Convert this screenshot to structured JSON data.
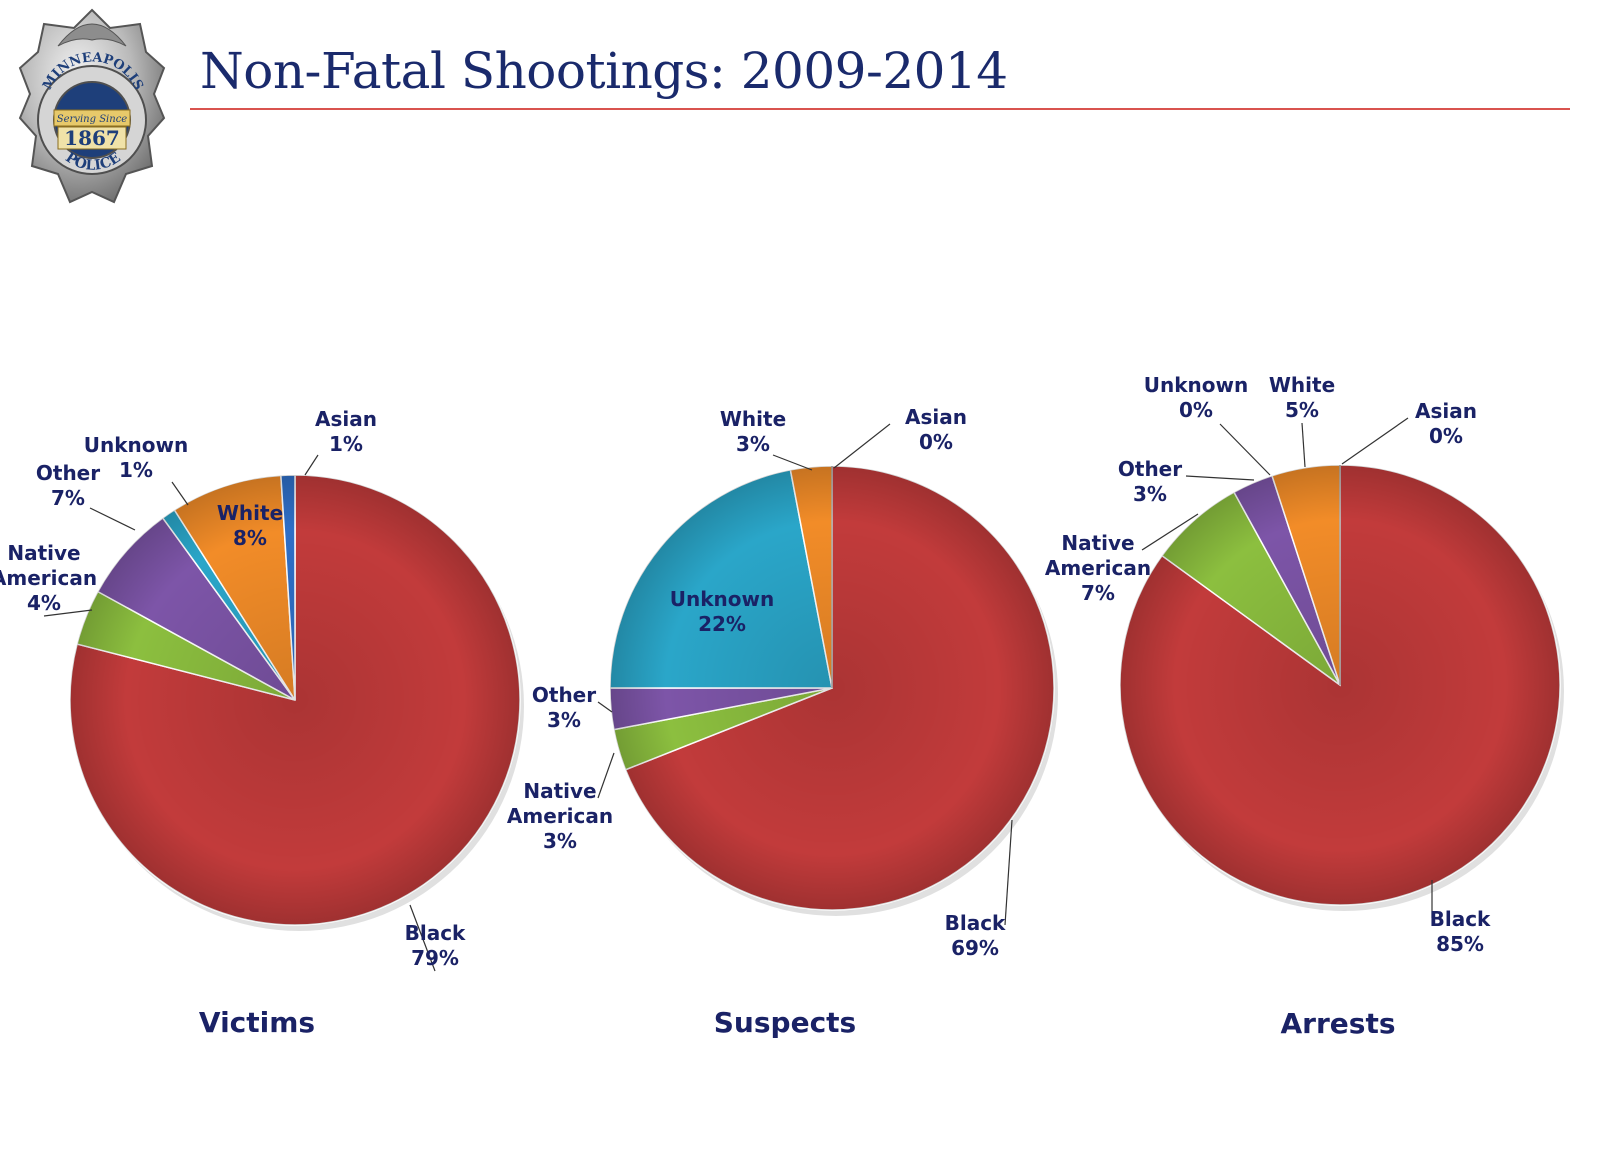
{
  "header": {
    "title": "Non-Fatal Shootings: 2009-2014",
    "logo": {
      "agency": "MINNEAPOLIS",
      "motto": "Serving Since",
      "year": "1867",
      "department": "POLICE"
    }
  },
  "colors": {
    "title": "#1a2a6c",
    "rule": "#d9534f",
    "label": "#1a2266",
    "Black": "#c23b3b",
    "White": "#f28c28",
    "Asian": "#2f6fc7",
    "Unknown": "#2aa6c9",
    "Other": "#7d55a8",
    "Native American": "#8cbf3f"
  },
  "chart_data": [
    {
      "type": "pie",
      "title": "Victims",
      "slices": [
        {
          "label": "Black",
          "value": 79,
          "display": "79%"
        },
        {
          "label": "Native American",
          "value": 4,
          "display": "4%"
        },
        {
          "label": "Other",
          "value": 7,
          "display": "7%"
        },
        {
          "label": "Unknown",
          "value": 1,
          "display": "1%"
        },
        {
          "label": "White",
          "value": 8,
          "display": "8%"
        },
        {
          "label": "Asian",
          "value": 1,
          "display": "1%"
        }
      ]
    },
    {
      "type": "pie",
      "title": "Suspects",
      "slices": [
        {
          "label": "Black",
          "value": 69,
          "display": "69%"
        },
        {
          "label": "Native American",
          "value": 3,
          "display": "3%"
        },
        {
          "label": "Other",
          "value": 3,
          "display": "3%"
        },
        {
          "label": "Unknown",
          "value": 22,
          "display": "22%"
        },
        {
          "label": "White",
          "value": 3,
          "display": "3%"
        },
        {
          "label": "Asian",
          "value": 0,
          "display": "0%"
        }
      ]
    },
    {
      "type": "pie",
      "title": "Arrests",
      "slices": [
        {
          "label": "Black",
          "value": 85,
          "display": "85%"
        },
        {
          "label": "Native American",
          "value": 7,
          "display": "7%"
        },
        {
          "label": "Other",
          "value": 3,
          "display": "3%"
        },
        {
          "label": "Unknown",
          "value": 0,
          "display": "0%"
        },
        {
          "label": "White",
          "value": 5,
          "display": "5%"
        },
        {
          "label": "Asian",
          "value": 0,
          "display": "0%"
        }
      ]
    }
  ]
}
